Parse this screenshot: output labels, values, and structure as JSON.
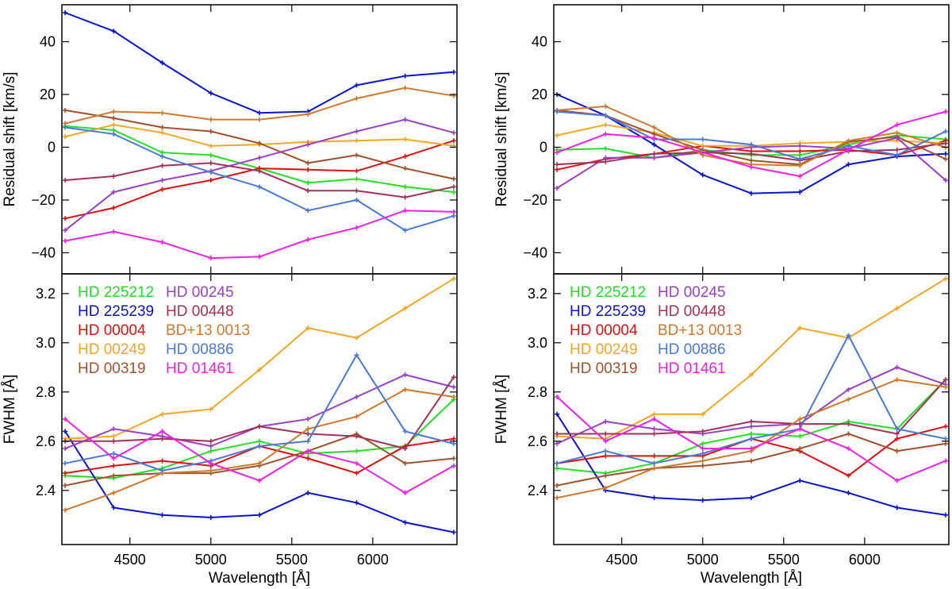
{
  "chart_data": {
    "type": "line",
    "x": [
      4100,
      4400,
      4700,
      5000,
      5300,
      5600,
      5900,
      6200,
      6500
    ],
    "xlabel": "Wavelength [Å]",
    "xlim": [
      4080,
      6520
    ],
    "xticks": [
      4500,
      5000,
      5500,
      6000
    ],
    "xtick_labels": [
      "4500",
      "5000",
      "5500",
      "6000"
    ],
    "stars": [
      {
        "name": "HD 225212",
        "color": "#22e022"
      },
      {
        "name": "HD 225239",
        "color": "#0a14cc"
      },
      {
        "name": "HD 00004",
        "color": "#e01010"
      },
      {
        "name": "HD 00249",
        "color": "#f5a623"
      },
      {
        "name": "HD 00319",
        "color": "#a0522d"
      },
      {
        "name": "HD 00245",
        "color": "#9b40c8"
      },
      {
        "name": "HD 00448",
        "color": "#a3325a"
      },
      {
        "name": "BD+13 0013",
        "color": "#d2782d"
      },
      {
        "name": "HD 00886",
        "color": "#4a78d8"
      },
      {
        "name": "HD 01461",
        "color": "#f020e8"
      }
    ],
    "panels": [
      {
        "id": "shift-left",
        "ylabel": "Residual shift [km/s]",
        "ylim": [
          -48,
          54
        ],
        "yticks": [
          -40,
          -20,
          0,
          20,
          40
        ],
        "ytick_labels": [
          "−40",
          "−20",
          "0",
          "20",
          "40"
        ],
        "series": [
          {
            "name": "HD 225212",
            "values": [
              8,
              6.5,
              -2,
              -3,
              -8,
              -13.5,
              -12,
              -15,
              -17
            ]
          },
          {
            "name": "HD 225239",
            "values": [
              51,
              44,
              32,
              20.5,
              13,
              13.5,
              23.5,
              27,
              28.5
            ]
          },
          {
            "name": "HD 00004",
            "values": [
              -27,
              -23,
              -16,
              -12.5,
              -8,
              -8.5,
              -9,
              -3.5,
              2.5
            ]
          },
          {
            "name": "HD 00249",
            "values": [
              4,
              8.5,
              5.5,
              0.5,
              1,
              2,
              2.5,
              3,
              0.5
            ]
          },
          {
            "name": "HD 00319",
            "values": [
              14,
              11,
              7.5,
              6,
              1.5,
              -6,
              -3,
              -8,
              -12
            ]
          },
          {
            "name": "HD 00245",
            "values": [
              -31.5,
              -17,
              -12.5,
              -9,
              -4,
              1,
              6,
              10.5,
              5.5
            ]
          },
          {
            "name": "HD 00448",
            "values": [
              -12.5,
              -11,
              -7,
              -6,
              -9,
              -16.5,
              -16.5,
              -19,
              -15
            ]
          },
          {
            "name": "BD+13 0013",
            "values": [
              9,
              13.5,
              13,
              10.5,
              10.5,
              12.5,
              18.5,
              22.5,
              19.5
            ]
          },
          {
            "name": "HD 00886",
            "values": [
              7.5,
              5,
              -3.5,
              -9.5,
              -15,
              -24,
              -20,
              -31.5,
              -26
            ]
          },
          {
            "name": "HD 01461",
            "values": [
              -35.5,
              -32,
              -36,
              -42,
              -41.5,
              -35,
              -30.5,
              -24,
              -24.5
            ]
          }
        ]
      },
      {
        "id": "shift-right",
        "ylabel": "Residual shift [km/s]",
        "ylim": [
          -48,
          54
        ],
        "yticks": [
          -40,
          -20,
          0,
          20,
          40
        ],
        "ytick_labels": [
          "−40",
          "−20",
          "0",
          "20",
          "40"
        ],
        "series": [
          {
            "name": "HD 225212",
            "values": [
              -1,
              -0.5,
              -4,
              -1,
              -3,
              -3,
              1,
              4.5,
              3
            ]
          },
          {
            "name": "HD 225239",
            "values": [
              20,
              12,
              1,
              -10.5,
              -17.5,
              -17,
              -6.5,
              -3.5,
              -2.5
            ]
          },
          {
            "name": "HD 00004",
            "values": [
              -8.5,
              -4.5,
              -2.5,
              0.5,
              -1.5,
              -1.5,
              -1,
              -3,
              2.5
            ]
          },
          {
            "name": "HD 00249",
            "values": [
              4.5,
              8.5,
              5.5,
              0.5,
              0.5,
              1.5,
              2,
              2.5,
              1.5
            ]
          },
          {
            "name": "HD 00319",
            "values": [
              14,
              12,
              5,
              -1,
              -5,
              -6.5,
              2,
              4,
              -4.5
            ]
          },
          {
            "name": "HD 00245",
            "values": [
              -15.5,
              -4,
              -4,
              -2,
              0,
              0.5,
              -0.5,
              3.5,
              -12.5
            ]
          },
          {
            "name": "HD 00448",
            "values": [
              -6.5,
              -5.5,
              -2.5,
              -2,
              -2.5,
              -5,
              -1.5,
              -1,
              1.5
            ]
          },
          {
            "name": "BD+13 0013",
            "values": [
              14,
              15.5,
              7.5,
              -3,
              -6.5,
              -7,
              2.5,
              5.5,
              0
            ]
          },
          {
            "name": "HD 00886",
            "values": [
              13.5,
              12,
              3,
              3,
              1,
              -4.5,
              0.5,
              -3,
              6
            ]
          },
          {
            "name": "HD 01461",
            "values": [
              -2,
              5,
              3.5,
              -2,
              -7.5,
              -11,
              -1,
              8.5,
              13.5
            ]
          }
        ]
      },
      {
        "id": "fwhm-left",
        "ylabel": "FWHM [Å]",
        "ylim": [
          2.18,
          3.28
        ],
        "yticks": [
          2.4,
          2.6,
          2.8,
          3.0,
          3.2
        ],
        "ytick_labels": [
          "2.4",
          "2.6",
          "2.8",
          "3.0",
          "3.2"
        ],
        "legend": true,
        "series": [
          {
            "name": "HD 225212",
            "values": [
              2.46,
              2.45,
              2.49,
              2.56,
              2.6,
              2.55,
              2.56,
              2.58,
              2.77
            ]
          },
          {
            "name": "HD 225239",
            "values": [
              2.64,
              2.33,
              2.3,
              2.29,
              2.3,
              2.39,
              2.35,
              2.27,
              2.23
            ]
          },
          {
            "name": "HD 00004",
            "values": [
              2.47,
              2.5,
              2.52,
              2.5,
              2.58,
              2.53,
              2.47,
              2.58,
              2.61
            ]
          },
          {
            "name": "HD 00249",
            "values": [
              2.61,
              2.62,
              2.71,
              2.73,
              2.89,
              3.06,
              3.02,
              3.14,
              3.26
            ]
          },
          {
            "name": "HD 00319",
            "values": [
              2.42,
              2.46,
              2.47,
              2.47,
              2.5,
              2.56,
              2.63,
              2.51,
              2.53
            ]
          },
          {
            "name": "HD 00245",
            "values": [
              2.57,
              2.65,
              2.62,
              2.58,
              2.66,
              2.69,
              2.78,
              2.87,
              2.82
            ]
          },
          {
            "name": "HD 00448",
            "values": [
              2.6,
              2.6,
              2.61,
              2.6,
              2.66,
              2.63,
              2.62,
              2.57,
              2.86
            ]
          },
          {
            "name": "BD+13 0013",
            "values": [
              2.32,
              2.39,
              2.47,
              2.48,
              2.51,
              2.65,
              2.7,
              2.81,
              2.78
            ]
          },
          {
            "name": "HD 00886",
            "values": [
              2.51,
              2.55,
              2.48,
              2.52,
              2.58,
              2.6,
              2.95,
              2.64,
              2.59
            ]
          },
          {
            "name": "HD 01461",
            "values": [
              2.69,
              2.53,
              2.64,
              2.51,
              2.44,
              2.56,
              2.51,
              2.39,
              2.5
            ]
          }
        ]
      },
      {
        "id": "fwhm-right",
        "ylabel": "FWHM [Å]",
        "ylim": [
          2.18,
          3.28
        ],
        "yticks": [
          2.4,
          2.6,
          2.8,
          3.0,
          3.2
        ],
        "ytick_labels": [
          "2.4",
          "2.6",
          "2.8",
          "3.0",
          "3.2"
        ],
        "legend": true,
        "series": [
          {
            "name": "HD 225212",
            "values": [
              2.49,
              2.47,
              2.51,
              2.59,
              2.63,
              2.62,
              2.68,
              2.65,
              2.85
            ]
          },
          {
            "name": "HD 225239",
            "values": [
              2.71,
              2.4,
              2.37,
              2.36,
              2.37,
              2.44,
              2.39,
              2.33,
              2.3
            ]
          },
          {
            "name": "HD 00004",
            "values": [
              2.51,
              2.54,
              2.54,
              2.54,
              2.61,
              2.56,
              2.46,
              2.61,
              2.66
            ]
          },
          {
            "name": "HD 00249",
            "values": [
              2.62,
              2.61,
              2.71,
              2.71,
              2.87,
              3.06,
              3.02,
              3.14,
              3.26
            ]
          },
          {
            "name": "HD 00319",
            "values": [
              2.42,
              2.46,
              2.49,
              2.5,
              2.52,
              2.57,
              2.63,
              2.56,
              2.59
            ]
          },
          {
            "name": "HD 00245",
            "values": [
              2.59,
              2.68,
              2.65,
              2.63,
              2.66,
              2.67,
              2.81,
              2.9,
              2.83
            ]
          },
          {
            "name": "HD 00448",
            "values": [
              2.63,
              2.63,
              2.63,
              2.64,
              2.68,
              2.67,
              2.67,
              2.63,
              2.85
            ]
          },
          {
            "name": "BD+13 0013",
            "values": [
              2.37,
              2.41,
              2.49,
              2.52,
              2.56,
              2.69,
              2.77,
              2.85,
              2.82
            ]
          },
          {
            "name": "HD 00886",
            "values": [
              2.51,
              2.56,
              2.51,
              2.55,
              2.61,
              2.65,
              3.03,
              2.65,
              2.61
            ]
          },
          {
            "name": "HD 01461",
            "values": [
              2.78,
              2.6,
              2.69,
              2.57,
              2.57,
              2.65,
              2.57,
              2.44,
              2.52
            ]
          }
        ]
      }
    ]
  }
}
